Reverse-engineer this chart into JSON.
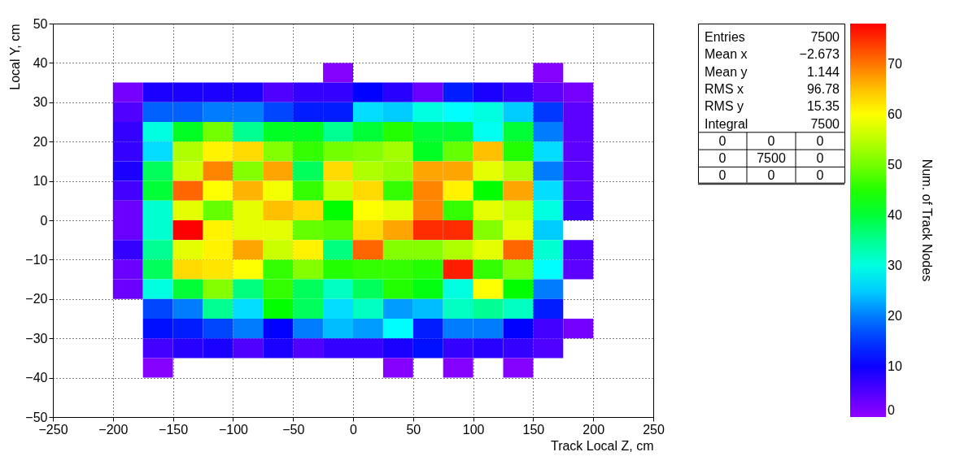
{
  "chart_data": {
    "type": "heatmap",
    "xlabel": "Track Local Z, cm",
    "ylabel": "Local Y, cm",
    "clabel": "Num. of Track Nodes",
    "x": [
      -187.5,
      -162.5,
      -137.5,
      -112.5,
      -87.5,
      -62.5,
      -37.5,
      -12.5,
      12.5,
      37.5,
      62.5,
      87.5,
      112.5,
      137.5,
      162.5,
      187.5
    ],
    "y": [
      37.5,
      32.5,
      27.5,
      22.5,
      17.5,
      12.5,
      7.5,
      2.5,
      -2.5,
      -7.5,
      -12.5,
      -17.5,
      -22.5,
      -27.5,
      -32.5,
      -37.5
    ],
    "cells": [
      [
        null,
        null,
        null,
        null,
        null,
        null,
        null,
        1,
        null,
        null,
        null,
        null,
        null,
        null,
        1,
        null
      ],
      [
        2,
        9,
        9,
        9,
        9,
        5,
        7,
        7,
        11,
        8,
        3,
        13,
        9,
        7,
        4,
        2
      ],
      [
        5,
        18,
        18,
        20,
        20,
        16,
        13,
        13,
        26,
        25,
        30,
        28,
        30,
        25,
        15,
        4
      ],
      [
        7,
        30,
        41,
        50,
        35,
        41,
        41,
        35,
        40,
        45,
        40,
        40,
        29,
        40,
        20,
        4
      ],
      [
        7,
        26,
        54,
        61,
        63,
        51,
        46,
        50,
        51,
        53,
        41,
        49,
        65,
        45,
        26,
        4
      ],
      [
        9,
        38,
        56,
        69,
        51,
        67,
        38,
        63,
        54,
        52,
        67,
        67,
        58,
        54,
        20,
        4
      ],
      [
        6,
        40,
        71,
        60,
        66,
        59,
        46,
        56,
        63,
        46,
        69,
        61,
        43,
        67,
        26,
        4
      ],
      [
        3,
        31,
        58,
        49,
        58,
        65,
        63,
        43,
        60,
        58,
        69,
        46,
        58,
        56,
        30,
        6
      ],
      [
        3,
        31,
        78,
        61,
        58,
        58,
        49,
        48,
        63,
        67,
        75,
        75,
        51,
        58,
        25,
        null
      ],
      [
        7,
        35,
        58,
        61,
        67,
        56,
        61,
        36,
        71,
        51,
        51,
        54,
        58,
        71,
        31,
        5
      ],
      [
        3,
        38,
        63,
        62,
        60,
        46,
        51,
        45,
        46,
        46,
        45,
        76,
        46,
        51,
        28,
        4
      ],
      [
        3,
        30,
        40,
        51,
        36,
        46,
        38,
        32,
        38,
        45,
        42,
        30,
        60,
        43,
        20,
        null
      ],
      [
        null,
        16,
        20,
        35,
        26,
        43,
        38,
        26,
        32,
        22,
        24,
        32,
        35,
        32,
        13,
        null
      ],
      [
        null,
        12,
        13,
        16,
        20,
        11,
        20,
        24,
        22,
        28,
        13,
        20,
        20,
        11,
        6,
        2
      ],
      [
        null,
        6,
        8,
        9,
        5,
        9,
        5,
        7,
        7,
        9,
        12,
        7,
        8,
        7,
        5,
        null
      ],
      [
        null,
        1,
        null,
        null,
        null,
        null,
        null,
        null,
        null,
        1,
        null,
        1,
        null,
        1,
        null,
        null
      ]
    ],
    "xlim": [
      -250,
      250
    ],
    "xticks": [
      -250,
      -200,
      -150,
      -100,
      -50,
      0,
      50,
      100,
      150,
      200,
      250
    ],
    "ylim": [
      -50,
      50
    ],
    "yticks": [
      -50,
      -40,
      -30,
      -20,
      -10,
      0,
      10,
      20,
      30,
      40,
      50
    ],
    "clim": [
      0,
      78
    ],
    "cticks": [
      0,
      10,
      20,
      30,
      40,
      50,
      60,
      70
    ],
    "grid": true,
    "annotations": [
      "Entries",
      "7500",
      "Mean x",
      "−2.673",
      "Mean y",
      "1.144",
      "RMS x",
      "96.78",
      "RMS y",
      "15.35",
      "Integral",
      "7500",
      "0",
      "0",
      "0",
      "0",
      "7500",
      "0",
      "0",
      "0",
      "0"
    ]
  }
}
